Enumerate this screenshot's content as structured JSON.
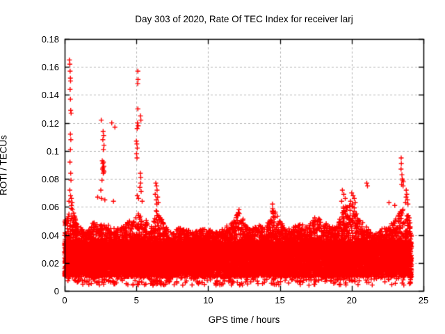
{
  "window": {
    "title": "Day 303 of 2020, Rate Of TEC Index for receiver larj"
  },
  "chart_data": {
    "type": "scatter",
    "title": "Day 303 of 2020, Rate Of TEC Index for receiver larj",
    "xlabel": "GPS time / hours",
    "ylabel": "ROTI / TECUs",
    "xlim": [
      0,
      25
    ],
    "ylim": [
      0,
      0.18
    ],
    "xtick_values": [
      0,
      5,
      10,
      15,
      20,
      25
    ],
    "xtick_labels": [
      "0",
      "5",
      "10",
      "15",
      "20",
      "25"
    ],
    "ytick_values": [
      0,
      0.02,
      0.04,
      0.06,
      0.08,
      0.1,
      0.12,
      0.14,
      0.16,
      0.18
    ],
    "ytick_labels": [
      "0",
      "0.02",
      "0.04",
      "0.06",
      "0.08",
      "0.1",
      "0.12",
      "0.14",
      "0.16",
      "0.18"
    ],
    "grid": true,
    "grid_color": "#b4b4b4",
    "marker": "plus",
    "marker_color": "#ff0000",
    "marker_size_px": 7,
    "legend": "none",
    "x_data_range": [
      0,
      24.17
    ],
    "band": {
      "description": "dense noise band of ROTI values present for all 24h",
      "sparse_low": 0.004,
      "core_bottom": 0.01,
      "core_top": 0.035,
      "points": 16000,
      "tail_fraction": 0.2,
      "sparse_fraction": 0.025,
      "seed": 303
    },
    "band_envelope": [
      [
        0.0,
        0.05
      ],
      [
        0.3,
        0.058
      ],
      [
        0.5,
        0.062
      ],
      [
        0.8,
        0.05
      ],
      [
        1.2,
        0.044
      ],
      [
        1.6,
        0.042
      ],
      [
        2.0,
        0.05
      ],
      [
        2.4,
        0.046
      ],
      [
        2.8,
        0.05
      ],
      [
        3.2,
        0.046
      ],
      [
        3.6,
        0.044
      ],
      [
        4.0,
        0.046
      ],
      [
        4.5,
        0.05
      ],
      [
        4.9,
        0.052
      ],
      [
        5.2,
        0.056
      ],
      [
        5.6,
        0.052
      ],
      [
        6.0,
        0.046
      ],
      [
        6.4,
        0.06
      ],
      [
        6.7,
        0.054
      ],
      [
        7.0,
        0.046
      ],
      [
        7.5,
        0.042
      ],
      [
        8.0,
        0.046
      ],
      [
        8.5,
        0.044
      ],
      [
        9.0,
        0.042
      ],
      [
        9.5,
        0.044
      ],
      [
        10.0,
        0.044
      ],
      [
        10.5,
        0.042
      ],
      [
        11.0,
        0.044
      ],
      [
        11.5,
        0.048
      ],
      [
        12.0,
        0.056
      ],
      [
        12.3,
        0.056
      ],
      [
        12.7,
        0.046
      ],
      [
        13.0,
        0.044
      ],
      [
        13.5,
        0.048
      ],
      [
        14.0,
        0.044
      ],
      [
        14.5,
        0.06
      ],
      [
        15.0,
        0.05
      ],
      [
        15.5,
        0.044
      ],
      [
        16.0,
        0.046
      ],
      [
        16.5,
        0.048
      ],
      [
        17.0,
        0.046
      ],
      [
        17.5,
        0.054
      ],
      [
        18.0,
        0.05
      ],
      [
        18.5,
        0.046
      ],
      [
        19.0,
        0.046
      ],
      [
        19.4,
        0.06
      ],
      [
        19.8,
        0.062
      ],
      [
        20.1,
        0.064
      ],
      [
        20.4,
        0.058
      ],
      [
        20.8,
        0.048
      ],
      [
        21.2,
        0.044
      ],
      [
        21.6,
        0.04
      ],
      [
        22.0,
        0.044
      ],
      [
        22.5,
        0.046
      ],
      [
        23.0,
        0.05
      ],
      [
        23.4,
        0.058
      ],
      [
        23.7,
        0.06
      ],
      [
        24.0,
        0.054
      ],
      [
        24.17,
        0.05
      ]
    ],
    "outliers": [
      [
        0.33,
        0.165
      ],
      [
        0.36,
        0.162
      ],
      [
        0.38,
        0.157
      ],
      [
        0.4,
        0.152
      ],
      [
        0.41,
        0.15
      ],
      [
        0.38,
        0.144
      ],
      [
        0.4,
        0.137
      ],
      [
        0.42,
        0.129
      ],
      [
        0.45,
        0.127
      ],
      [
        0.4,
        0.112
      ],
      [
        0.43,
        0.108
      ],
      [
        0.4,
        0.101
      ],
      [
        0.37,
        0.092
      ],
      [
        0.42,
        0.084
      ],
      [
        0.44,
        0.079
      ],
      [
        0.36,
        0.072
      ],
      [
        0.41,
        0.068
      ],
      [
        0.47,
        0.066
      ],
      [
        0.3,
        0.064
      ],
      [
        0.52,
        0.063
      ],
      [
        2.3,
        0.067
      ],
      [
        2.55,
        0.122
      ],
      [
        2.68,
        0.114
      ],
      [
        2.72,
        0.111
      ],
      [
        2.66,
        0.108
      ],
      [
        2.74,
        0.104
      ],
      [
        2.7,
        0.101
      ],
      [
        2.62,
        0.093
      ],
      [
        2.66,
        0.091
      ],
      [
        2.7,
        0.092
      ],
      [
        2.73,
        0.089
      ],
      [
        2.67,
        0.088
      ],
      [
        2.71,
        0.086
      ],
      [
        2.64,
        0.087
      ],
      [
        2.69,
        0.084
      ],
      [
        2.74,
        0.085
      ],
      [
        2.6,
        0.079
      ],
      [
        2.52,
        0.072
      ],
      [
        2.56,
        0.066
      ],
      [
        2.8,
        0.065
      ],
      [
        3.28,
        0.12
      ],
      [
        3.5,
        0.117
      ],
      [
        3.4,
        0.064
      ],
      [
        5.1,
        0.157
      ],
      [
        5.11,
        0.151
      ],
      [
        5.09,
        0.148
      ],
      [
        5.1,
        0.13
      ],
      [
        5.28,
        0.125
      ],
      [
        5.31,
        0.122
      ],
      [
        5.07,
        0.12
      ],
      [
        5.12,
        0.118
      ],
      [
        5.05,
        0.116
      ],
      [
        5.0,
        0.107
      ],
      [
        5.03,
        0.105
      ],
      [
        5.06,
        0.102
      ],
      [
        5.01,
        0.098
      ],
      [
        5.04,
        0.095
      ],
      [
        5.27,
        0.084
      ],
      [
        5.3,
        0.081
      ],
      [
        5.29,
        0.077
      ],
      [
        5.24,
        0.074
      ],
      [
        5.33,
        0.071
      ],
      [
        5.06,
        0.068
      ],
      [
        5.15,
        0.066
      ],
      [
        5.4,
        0.064
      ],
      [
        6.35,
        0.077
      ],
      [
        6.4,
        0.075
      ],
      [
        6.44,
        0.072
      ],
      [
        6.31,
        0.069
      ],
      [
        6.48,
        0.067
      ],
      [
        6.38,
        0.065
      ],
      [
        6.52,
        0.063
      ],
      [
        6.42,
        0.062
      ],
      [
        12.15,
        0.058
      ],
      [
        14.48,
        0.062
      ],
      [
        19.35,
        0.072
      ],
      [
        19.45,
        0.069
      ],
      [
        19.55,
        0.066
      ],
      [
        19.3,
        0.064
      ],
      [
        20.0,
        0.07
      ],
      [
        20.1,
        0.068
      ],
      [
        20.18,
        0.066
      ],
      [
        19.92,
        0.064
      ],
      [
        20.25,
        0.063
      ],
      [
        20.05,
        0.062
      ],
      [
        21.05,
        0.077
      ],
      [
        21.1,
        0.075
      ],
      [
        22.6,
        0.063
      ],
      [
        23.0,
        0.061
      ],
      [
        23.45,
        0.095
      ],
      [
        23.46,
        0.091
      ],
      [
        23.44,
        0.087
      ],
      [
        23.5,
        0.083
      ],
      [
        23.52,
        0.08
      ],
      [
        23.55,
        0.079
      ],
      [
        23.6,
        0.078
      ],
      [
        23.48,
        0.076
      ],
      [
        23.58,
        0.075
      ],
      [
        23.8,
        0.072
      ],
      [
        23.84,
        0.069
      ],
      [
        23.79,
        0.067
      ],
      [
        23.88,
        0.065
      ],
      [
        23.75,
        0.063
      ],
      [
        23.92,
        0.062
      ]
    ]
  }
}
